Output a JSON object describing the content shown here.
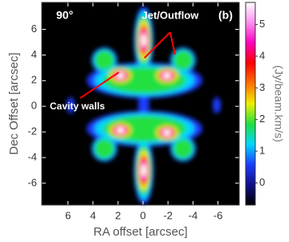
{
  "chart_data": {
    "type": "image",
    "title": "90°",
    "panel_label": "(b)",
    "annotations": [
      "Jet/Outflow",
      "Cavity walls"
    ],
    "x_label": "RA offset [arcsec]",
    "y_label": "Dec Offset [arcsec]",
    "xlim": [
      8.1,
      -7.7
    ],
    "xticks": [
      6,
      4,
      2,
      0,
      -2,
      -4,
      -6
    ],
    "ylim": [
      -7.7,
      8.1
    ],
    "yticks": [
      6,
      4,
      2,
      0,
      -2,
      -4,
      -6
    ],
    "colorbar": {
      "label": "(Jy/beam.km/s)",
      "lim": [
        -0.7,
        5.7
      ],
      "ticks": [
        0,
        1,
        2,
        3,
        4,
        5
      ],
      "colors": [
        "#000000",
        "#10108a",
        "#1a3cff",
        "#00d8ff",
        "#20e040",
        "#f0f000",
        "#ff7000",
        "#ff0000",
        "#ff00c0",
        "#ff90f0",
        "#ffffff"
      ]
    }
  }
}
